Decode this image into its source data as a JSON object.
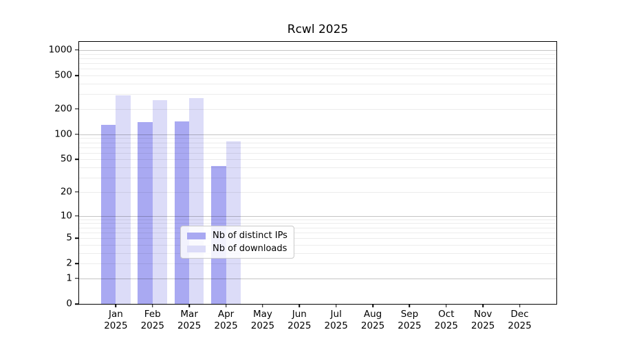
{
  "title": "Rcwl 2025",
  "chart_data": {
    "type": "bar",
    "title": "Rcwl 2025",
    "y_scale": "log1p",
    "categories": [
      "Jan",
      "Feb",
      "Mar",
      "Apr",
      "May",
      "Jun",
      "Jul",
      "Aug",
      "Sep",
      "Oct",
      "Nov",
      "Dec"
    ],
    "year_label": "2025",
    "series": [
      {
        "name": "Nb of distinct IPs",
        "color": "#a9a9f2",
        "values": [
          130,
          140,
          143,
          42,
          null,
          null,
          null,
          null,
          null,
          null,
          null,
          null
        ]
      },
      {
        "name": "Nb of downloads",
        "color": "#dcdcf8",
        "values": [
          288,
          256,
          270,
          82,
          null,
          null,
          null,
          null,
          null,
          null,
          null,
          null
        ]
      }
    ],
    "y_ticks": [
      0,
      1,
      2,
      5,
      10,
      20,
      50,
      100,
      200,
      500,
      1000
    ],
    "ylim": [
      0,
      1250
    ],
    "xlabel": "",
    "ylabel": "",
    "grid": "both",
    "legend_position": "lower-center",
    "colors": {
      "major_gridline": "#c6c6c6",
      "minor_gridline": "#ececec",
      "axis": "#000000",
      "background": "#ffffff"
    }
  }
}
